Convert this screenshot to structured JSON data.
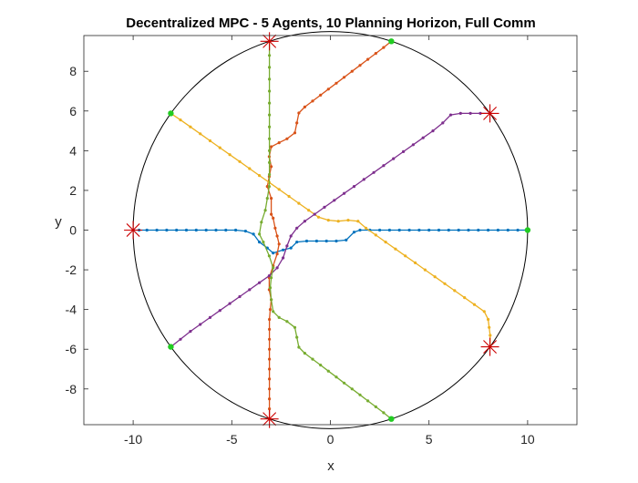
{
  "chart_data": {
    "type": "line",
    "title": "Decentralized MPC - 5 Agents, 10 Planning Horizon, Full Comm",
    "xlabel": "x",
    "ylabel": "y",
    "xlim": [
      -12.5,
      12.5
    ],
    "ylim": [
      -9.8,
      9.8
    ],
    "xticks": [
      -10,
      -5,
      0,
      5,
      10
    ],
    "yticks": [
      -8,
      -6,
      -4,
      -2,
      0,
      2,
      4,
      6,
      8
    ],
    "xtick_labels": [
      "-10",
      "-5",
      "0",
      "5",
      "10"
    ],
    "ytick_labels": [
      "-8",
      "-6",
      "-4",
      "-2",
      "0",
      "2",
      "4",
      "6",
      "8"
    ],
    "grid": false,
    "boundary_circle": {
      "center": [
        0,
        0
      ],
      "radius": 10,
      "color": "#000000"
    },
    "start_marker_color": "#22cc22",
    "goal_marker_color": "#cc0000",
    "series": [
      {
        "color": "#0072BD",
        "start": [
          10,
          0
        ],
        "goal": [
          -10,
          0
        ],
        "points": [
          [
            10,
            0
          ],
          [
            9.5,
            0
          ],
          [
            9,
            0
          ],
          [
            8.5,
            0
          ],
          [
            8,
            0
          ],
          [
            7.5,
            0
          ],
          [
            7,
            0
          ],
          [
            6.5,
            0
          ],
          [
            6,
            0
          ],
          [
            5.5,
            0
          ],
          [
            5,
            0
          ],
          [
            4.5,
            0
          ],
          [
            4,
            0
          ],
          [
            3.5,
            0
          ],
          [
            3,
            0
          ],
          [
            2.5,
            0
          ],
          [
            2,
            0
          ],
          [
            1.5,
            0
          ],
          [
            1.2,
            -0.1
          ],
          [
            0.8,
            -0.5
          ],
          [
            0.3,
            -0.55
          ],
          [
            -0.2,
            -0.55
          ],
          [
            -0.7,
            -0.55
          ],
          [
            -1.2,
            -0.55
          ],
          [
            -1.7,
            -0.6
          ],
          [
            -2.0,
            -0.9
          ],
          [
            -2.4,
            -1.0
          ],
          [
            -2.9,
            -1.15
          ],
          [
            -3.2,
            -0.9
          ],
          [
            -3.6,
            -0.6
          ],
          [
            -3.9,
            -0.2
          ],
          [
            -4.3,
            -0.05
          ],
          [
            -4.8,
            0
          ],
          [
            -5.3,
            0
          ],
          [
            -5.8,
            0
          ],
          [
            -6.3,
            0
          ],
          [
            -6.8,
            0
          ],
          [
            -7.3,
            0
          ],
          [
            -7.8,
            0
          ],
          [
            -8.3,
            0
          ],
          [
            -8.8,
            0
          ],
          [
            -9.3,
            0
          ],
          [
            -9.7,
            0
          ],
          [
            -10,
            0
          ]
        ]
      },
      {
        "color": "#D95319",
        "start": [
          3.09,
          9.51
        ],
        "goal": [
          -3.09,
          -9.51
        ],
        "points": [
          [
            3.09,
            9.51
          ],
          [
            2.7,
            9.2
          ],
          [
            2.3,
            8.9
          ],
          [
            1.9,
            8.6
          ],
          [
            1.5,
            8.3
          ],
          [
            1.1,
            8.0
          ],
          [
            0.7,
            7.7
          ],
          [
            0.3,
            7.4
          ],
          [
            -0.1,
            7.1
          ],
          [
            -0.5,
            6.8
          ],
          [
            -0.9,
            6.5
          ],
          [
            -1.3,
            6.2
          ],
          [
            -1.6,
            5.9
          ],
          [
            -1.7,
            5.4
          ],
          [
            -1.8,
            4.9
          ],
          [
            -2.2,
            4.6
          ],
          [
            -2.6,
            4.4
          ],
          [
            -3.0,
            4.2
          ],
          [
            -3.1,
            3.7
          ],
          [
            -3.0,
            3.2
          ],
          [
            -3.1,
            2.7
          ],
          [
            -3.2,
            2.2
          ],
          [
            -3.0,
            1.6
          ],
          [
            -3.0,
            0.8
          ],
          [
            -2.9,
            0.6
          ],
          [
            -2.8,
            0.1
          ],
          [
            -2.7,
            -0.3
          ],
          [
            -2.6,
            -0.7
          ],
          [
            -2.7,
            -1.2
          ],
          [
            -2.9,
            -1.8
          ],
          [
            -3.1,
            -2.4
          ],
          [
            -3.1,
            -3.0
          ],
          [
            -3.0,
            -3.5
          ],
          [
            -3.05,
            -4.0
          ],
          [
            -3.09,
            -4.5
          ],
          [
            -3.09,
            -5.0
          ],
          [
            -3.09,
            -5.5
          ],
          [
            -3.09,
            -6.0
          ],
          [
            -3.09,
            -6.5
          ],
          [
            -3.09,
            -7.0
          ],
          [
            -3.09,
            -7.5
          ],
          [
            -3.09,
            -8.0
          ],
          [
            -3.09,
            -8.5
          ],
          [
            -3.09,
            -9.0
          ],
          [
            -3.09,
            -9.51
          ]
        ]
      },
      {
        "color": "#EDB120",
        "start": [
          -8.09,
          5.88
        ],
        "goal": [
          8.09,
          -5.88
        ],
        "points": [
          [
            -8.09,
            5.88
          ],
          [
            -7.6,
            5.55
          ],
          [
            -7.1,
            5.2
          ],
          [
            -6.6,
            4.85
          ],
          [
            -6.1,
            4.5
          ],
          [
            -5.6,
            4.15
          ],
          [
            -5.1,
            3.8
          ],
          [
            -4.6,
            3.45
          ],
          [
            -4.1,
            3.1
          ],
          [
            -3.6,
            2.75
          ],
          [
            -3.1,
            2.4
          ],
          [
            -2.6,
            2.05
          ],
          [
            -2.1,
            1.7
          ],
          [
            -1.6,
            1.35
          ],
          [
            -1.1,
            1.0
          ],
          [
            -0.6,
            0.65
          ],
          [
            -0.1,
            0.5
          ],
          [
            0.4,
            0.45
          ],
          [
            0.9,
            0.5
          ],
          [
            1.4,
            0.45
          ],
          [
            1.8,
            0.1
          ],
          [
            2.3,
            -0.25
          ],
          [
            2.8,
            -0.6
          ],
          [
            3.3,
            -0.95
          ],
          [
            3.8,
            -1.3
          ],
          [
            4.3,
            -1.65
          ],
          [
            4.8,
            -2.0
          ],
          [
            5.3,
            -2.35
          ],
          [
            5.8,
            -2.7
          ],
          [
            6.3,
            -3.05
          ],
          [
            6.8,
            -3.4
          ],
          [
            7.3,
            -3.75
          ],
          [
            7.8,
            -4.1
          ],
          [
            8.0,
            -4.5
          ],
          [
            8.05,
            -4.9
          ],
          [
            8.1,
            -5.3
          ],
          [
            8.09,
            -5.88
          ]
        ]
      },
      {
        "color": "#7E2F8E",
        "start": [
          -8.09,
          -5.88
        ],
        "goal": [
          8.09,
          5.88
        ],
        "points": [
          [
            -8.09,
            -5.88
          ],
          [
            -7.6,
            -5.5
          ],
          [
            -7.1,
            -5.1
          ],
          [
            -6.6,
            -4.75
          ],
          [
            -6.1,
            -4.4
          ],
          [
            -5.6,
            -4.05
          ],
          [
            -5.1,
            -3.7
          ],
          [
            -4.6,
            -3.35
          ],
          [
            -4.1,
            -3.0
          ],
          [
            -3.6,
            -2.65
          ],
          [
            -3.1,
            -2.3
          ],
          [
            -2.7,
            -1.9
          ],
          [
            -2.4,
            -1.4
          ],
          [
            -2.2,
            -0.8
          ],
          [
            -2.0,
            -0.3
          ],
          [
            -1.7,
            0.1
          ],
          [
            -1.3,
            0.45
          ],
          [
            -0.8,
            0.8
          ],
          [
            -0.3,
            1.15
          ],
          [
            0.2,
            1.5
          ],
          [
            0.7,
            1.85
          ],
          [
            1.2,
            2.2
          ],
          [
            1.7,
            2.55
          ],
          [
            2.2,
            2.9
          ],
          [
            2.7,
            3.25
          ],
          [
            3.2,
            3.6
          ],
          [
            3.7,
            3.95
          ],
          [
            4.2,
            4.3
          ],
          [
            4.7,
            4.65
          ],
          [
            5.2,
            5.0
          ],
          [
            5.7,
            5.4
          ],
          [
            6.1,
            5.8
          ],
          [
            6.6,
            5.88
          ],
          [
            7.1,
            5.88
          ],
          [
            7.6,
            5.88
          ],
          [
            8.09,
            5.88
          ]
        ]
      },
      {
        "color": "#77AC30",
        "start": [
          3.09,
          -9.51
        ],
        "goal": [
          -3.09,
          9.51
        ],
        "points": [
          [
            3.09,
            -9.51
          ],
          [
            2.7,
            -9.2
          ],
          [
            2.3,
            -8.9
          ],
          [
            1.9,
            -8.6
          ],
          [
            1.5,
            -8.3
          ],
          [
            1.1,
            -8.0
          ],
          [
            0.7,
            -7.7
          ],
          [
            0.3,
            -7.4
          ],
          [
            -0.1,
            -7.1
          ],
          [
            -0.5,
            -6.8
          ],
          [
            -0.9,
            -6.5
          ],
          [
            -1.3,
            -6.2
          ],
          [
            -1.6,
            -5.9
          ],
          [
            -1.7,
            -5.4
          ],
          [
            -1.8,
            -4.9
          ],
          [
            -2.2,
            -4.6
          ],
          [
            -2.6,
            -4.4
          ],
          [
            -2.9,
            -4.1
          ],
          [
            -3.0,
            -3.5
          ],
          [
            -3.05,
            -2.9
          ],
          [
            -3.0,
            -2.4
          ],
          [
            -2.9,
            -1.9
          ],
          [
            -3.1,
            -1.3
          ],
          [
            -3.4,
            -0.6
          ],
          [
            -3.6,
            -0.2
          ],
          [
            -3.5,
            0.4
          ],
          [
            -3.3,
            1.0
          ],
          [
            -3.2,
            1.6
          ],
          [
            -3.1,
            2.2
          ],
          [
            -3.09,
            2.8
          ],
          [
            -3.09,
            3.4
          ],
          [
            -3.09,
            4.0
          ],
          [
            -3.09,
            4.6
          ],
          [
            -3.09,
            5.2
          ],
          [
            -3.09,
            5.8
          ],
          [
            -3.09,
            6.4
          ],
          [
            -3.09,
            7.0
          ],
          [
            -3.09,
            7.6
          ],
          [
            -3.09,
            8.2
          ],
          [
            -3.09,
            8.8
          ],
          [
            -3.09,
            9.51
          ]
        ]
      }
    ]
  }
}
